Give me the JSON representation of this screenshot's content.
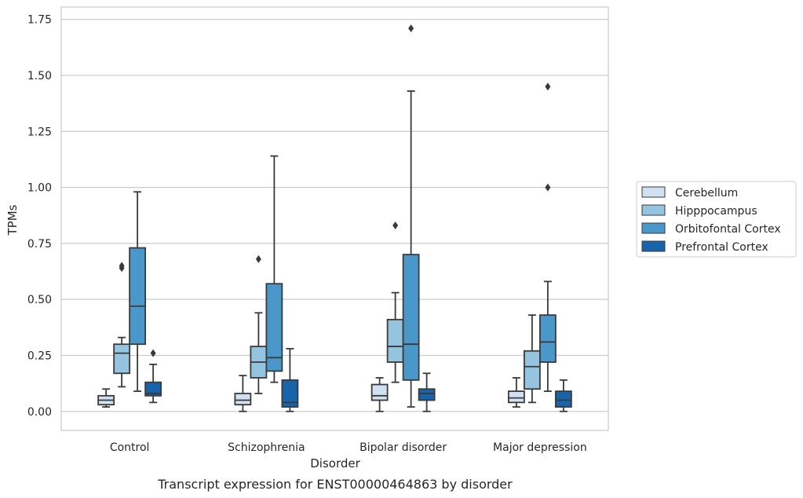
{
  "chart_data": {
    "type": "box",
    "title": "",
    "caption": "Transcript expression for ENST00000464863 by disorder",
    "xlabel": "Disorder",
    "ylabel": "TPMs",
    "ylim": [
      -0.085,
      1.805
    ],
    "yticks": [
      0.0,
      0.25,
      0.5,
      0.75,
      1.0,
      1.25,
      1.5,
      1.75
    ],
    "ytick_labels": [
      "0.00",
      "0.25",
      "0.50",
      "0.75",
      "1.00",
      "1.25",
      "1.50",
      "1.75"
    ],
    "grid": "horizontal",
    "legend_placement": "right",
    "categories": [
      "Control",
      "Schizophrenia",
      "Bipolar disorder",
      "Major depression"
    ],
    "series": [
      {
        "name": "Cerebellum",
        "color": "#d0e1f2",
        "boxes": [
          {
            "min": 0.02,
            "q1": 0.03,
            "median": 0.05,
            "q3": 0.07,
            "max": 0.1,
            "outliers": []
          },
          {
            "min": 0.0,
            "q1": 0.03,
            "median": 0.05,
            "q3": 0.08,
            "max": 0.16,
            "outliers": []
          },
          {
            "min": 0.0,
            "q1": 0.05,
            "median": 0.07,
            "q3": 0.12,
            "max": 0.15,
            "outliers": []
          },
          {
            "min": 0.02,
            "q1": 0.04,
            "median": 0.06,
            "q3": 0.09,
            "max": 0.15,
            "outliers": []
          }
        ]
      },
      {
        "name": "Hipppocampus",
        "color": "#94c4df",
        "boxes": [
          {
            "min": 0.11,
            "q1": 0.17,
            "median": 0.26,
            "q3": 0.3,
            "max": 0.33,
            "outliers": [
              0.64,
              0.65
            ]
          },
          {
            "min": 0.08,
            "q1": 0.15,
            "median": 0.22,
            "q3": 0.29,
            "max": 0.44,
            "outliers": [
              0.68
            ]
          },
          {
            "min": 0.13,
            "q1": 0.22,
            "median": 0.29,
            "q3": 0.41,
            "max": 0.53,
            "outliers": [
              0.83
            ]
          },
          {
            "min": 0.04,
            "q1": 0.1,
            "median": 0.2,
            "q3": 0.27,
            "max": 0.43,
            "outliers": []
          }
        ]
      },
      {
        "name": "Orbitofontal Cortex",
        "color": "#4a98c9",
        "boxes": [
          {
            "min": 0.09,
            "q1": 0.3,
            "median": 0.47,
            "q3": 0.73,
            "max": 0.98,
            "outliers": []
          },
          {
            "min": 0.13,
            "q1": 0.18,
            "median": 0.24,
            "q3": 0.57,
            "max": 1.14,
            "outliers": []
          },
          {
            "min": 0.02,
            "q1": 0.14,
            "median": 0.3,
            "q3": 0.7,
            "max": 1.43,
            "outliers": [
              1.71
            ]
          },
          {
            "min": 0.09,
            "q1": 0.22,
            "median": 0.31,
            "q3": 0.43,
            "max": 0.58,
            "outliers": [
              1.0,
              1.45
            ]
          }
        ]
      },
      {
        "name": "Prefrontal Cortex",
        "color": "#1764ab",
        "boxes": [
          {
            "min": 0.04,
            "q1": 0.07,
            "median": 0.08,
            "q3": 0.13,
            "max": 0.21,
            "outliers": [
              0.26
            ]
          },
          {
            "min": 0.0,
            "q1": 0.02,
            "median": 0.04,
            "q3": 0.14,
            "max": 0.28,
            "outliers": []
          },
          {
            "min": 0.0,
            "q1": 0.05,
            "median": 0.08,
            "q3": 0.1,
            "max": 0.17,
            "outliers": []
          },
          {
            "min": 0.0,
            "q1": 0.02,
            "median": 0.05,
            "q3": 0.09,
            "max": 0.14,
            "outliers": []
          }
        ]
      }
    ]
  }
}
